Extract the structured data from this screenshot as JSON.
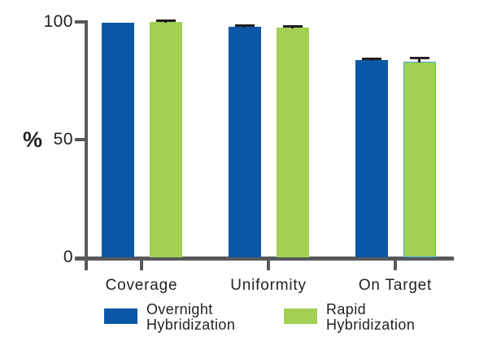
{
  "chart_data": {
    "type": "bar",
    "title": "",
    "xlabel": "",
    "ylabel": "%",
    "categories": [
      "Coverage",
      "Uniformity",
      "On Target"
    ],
    "series": [
      {
        "name": "Overnight Hybridization",
        "color": "#0b57a5",
        "values": [
          99.8,
          97.9,
          83.8
        ],
        "errors": [
          0,
          0.5,
          0.5
        ]
      },
      {
        "name": "Rapid Hybridization",
        "color": "#a1d052",
        "values": [
          100,
          97.5,
          83.1
        ],
        "errors": [
          0.4,
          0.6,
          1.5
        ],
        "outlined": [
          false,
          false,
          true
        ],
        "outline_color": "#46a7d9"
      }
    ],
    "ylim": [
      0,
      100
    ],
    "yticks": [
      0,
      50,
      100
    ],
    "grid": false,
    "legend_position": "bottom",
    "axis_color": "#58595b",
    "text_color": "#231f20",
    "error_bar_color": "#231f20"
  }
}
